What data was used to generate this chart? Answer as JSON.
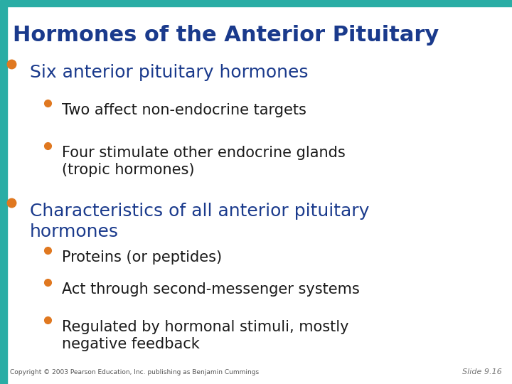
{
  "title": "Hormones of the Anterior Pituitary",
  "title_color": "#1a3a8c",
  "title_fontsize": 22,
  "background_color": "#ffffff",
  "top_bar_color": "#2aada5",
  "left_bar_color": "#2aada5",
  "bullet_color": "#e07820",
  "text_color_main": "#1a3a8c",
  "text_color_sub": "#1a1a1a",
  "copyright": "Copyright © 2003 Pearson Education, Inc. publishing as Benjamin Cummings",
  "slide_num": "Slide 9.16",
  "items": [
    {
      "level": 1,
      "text": "Six anterior pituitary hormones",
      "fontsize": 18,
      "bold": false
    },
    {
      "level": 2,
      "text": "Two affect non-endocrine targets",
      "fontsize": 15,
      "bold": false
    },
    {
      "level": 2,
      "text": "Four stimulate other endocrine glands\n(tropic hormones)",
      "fontsize": 15,
      "bold": false
    },
    {
      "level": 1,
      "text": "Characteristics of all anterior pituitary\nhormones",
      "fontsize": 18,
      "bold": false
    },
    {
      "level": 2,
      "text": "Proteins (or peptides)",
      "fontsize": 15,
      "bold": false
    },
    {
      "level": 2,
      "text": "Act through second-messenger systems",
      "fontsize": 15,
      "bold": false
    },
    {
      "level": 2,
      "text": "Regulated by hormonal stimuli, mostly\nnegative feedback",
      "fontsize": 15,
      "bold": false
    }
  ]
}
